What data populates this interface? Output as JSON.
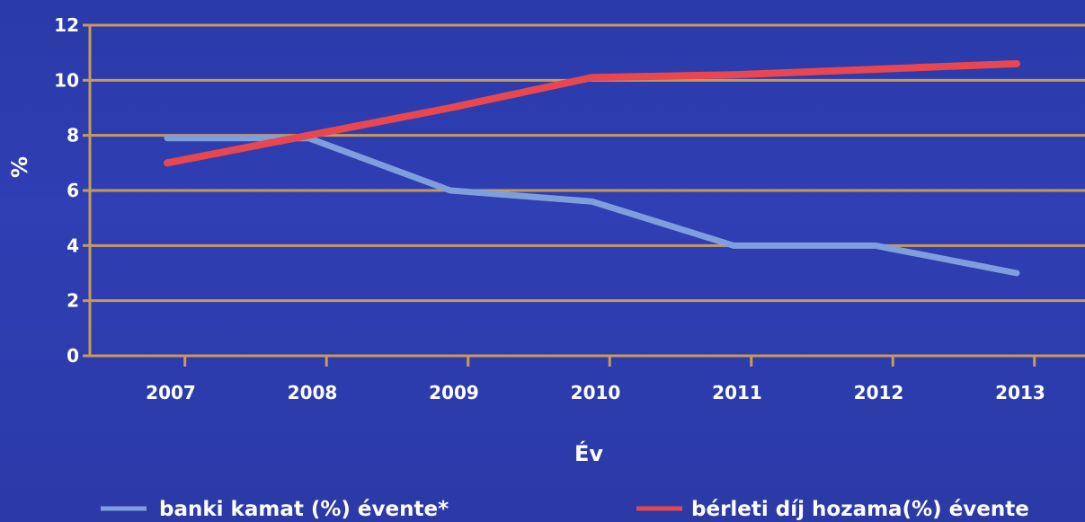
{
  "chart_data": {
    "type": "line",
    "categories": [
      "2007",
      "2008",
      "2009",
      "2010",
      "2011",
      "2012",
      "2013"
    ],
    "xlabel": "Év",
    "ylabel": "%",
    "ylim": [
      0,
      12
    ],
    "yticks": [
      0,
      2,
      4,
      6,
      8,
      10,
      12
    ],
    "grid": true,
    "legend_position": "bottom",
    "series": [
      {
        "name": "banki kamat (%) évente*",
        "color": "#7f9fdc",
        "values": [
          7.9,
          7.9,
          6.0,
          5.6,
          4.0,
          4.0,
          3.0
        ]
      },
      {
        "name": "bérleti díj hozama(%) évente",
        "color": "#e8474f",
        "values": [
          7.0,
          8.0,
          9.0,
          10.1,
          10.2,
          10.4,
          10.6
        ]
      }
    ],
    "colors": {
      "background": "#2d3cae",
      "gridline": "#c89a5a",
      "axis": "#c89a5a",
      "text": "#ffffff"
    }
  }
}
